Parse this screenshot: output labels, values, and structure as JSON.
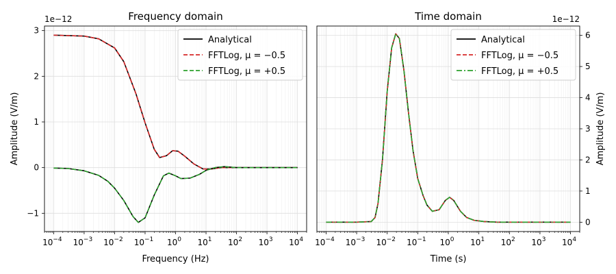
{
  "chart_data": [
    {
      "type": "line",
      "title": "Frequency domain",
      "xlabel": "Frequency (Hz)",
      "ylabel": "Amplitude (V/m)",
      "x_scale": "log",
      "xlim": [
        5e-05,
        20000
      ],
      "ylim": [
        -1.4,
        3.1
      ],
      "offset_text": "1e−12",
      "x_ticks": [
        0.0001,
        0.001,
        0.01,
        0.1,
        1,
        10,
        100,
        1000,
        10000
      ],
      "x_tick_labels": [
        {
          "base": "10",
          "exp": "−4"
        },
        {
          "base": "10",
          "exp": "−3"
        },
        {
          "base": "10",
          "exp": "−2"
        },
        {
          "base": "10",
          "exp": "−1"
        },
        {
          "base": "10",
          "exp": "0"
        },
        {
          "base": "10",
          "exp": "1"
        },
        {
          "base": "10",
          "exp": "2"
        },
        {
          "base": "10",
          "exp": "3"
        },
        {
          "base": "10",
          "exp": "4"
        }
      ],
      "y_ticks": [
        -1,
        0,
        1,
        2,
        3
      ],
      "y_tick_labels": [
        "−1",
        "0",
        "1",
        "2",
        "3"
      ],
      "legend": [
        {
          "label": "Analytical",
          "color": "#000000",
          "dash": "solid"
        },
        {
          "label": "FFTLog, μ = −0.5",
          "color": "#d62728",
          "dash": "dashed"
        },
        {
          "label": "FFTLog, μ = +0.5",
          "color": "#2ca02c",
          "dash": "dashed"
        }
      ],
      "legend_position": "top-right",
      "grid": true,
      "series": [
        {
          "name": "Analytical",
          "color": "#000000",
          "dash": "solid",
          "x": [
            0.0001,
            0.001,
            0.003,
            0.01,
            0.02,
            0.05,
            0.1,
            0.2,
            0.3,
            0.5,
            0.8,
            1.2,
            2,
            4,
            8,
            15,
            30,
            100,
            1000,
            10000
          ],
          "y": [
            2.9,
            2.88,
            2.82,
            2.62,
            2.32,
            1.62,
            0.98,
            0.4,
            0.22,
            0.26,
            0.37,
            0.36,
            0.25,
            0.08,
            -0.03,
            -0.03,
            0.0,
            0.0,
            0.0,
            0.0
          ]
        },
        {
          "name": "FFTLog, μ = −0.5",
          "color": "#d62728",
          "dash": "dashed",
          "x": [
            0.0001,
            0.001,
            0.003,
            0.01,
            0.02,
            0.05,
            0.1,
            0.2,
            0.3,
            0.5,
            0.8,
            1.2,
            2,
            4,
            8,
            15,
            30,
            100,
            1000,
            10000
          ],
          "y": [
            2.9,
            2.88,
            2.82,
            2.62,
            2.32,
            1.62,
            0.98,
            0.4,
            0.22,
            0.26,
            0.37,
            0.36,
            0.25,
            0.08,
            -0.03,
            -0.03,
            0.0,
            0.0,
            0.0,
            0.0
          ]
        },
        {
          "name": "Analytical",
          "color": "#000000",
          "dash": "solid",
          "x": [
            0.0001,
            0.0003,
            0.001,
            0.003,
            0.006,
            0.01,
            0.02,
            0.04,
            0.06,
            0.1,
            0.2,
            0.4,
            0.6,
            1.0,
            1.5,
            3,
            6,
            10,
            20,
            40,
            100,
            1000,
            10000
          ],
          "y": [
            -0.01,
            -0.02,
            -0.07,
            -0.17,
            -0.3,
            -0.45,
            -0.72,
            -1.07,
            -1.2,
            -1.1,
            -0.6,
            -0.18,
            -0.12,
            -0.18,
            -0.24,
            -0.23,
            -0.15,
            -0.06,
            0.0,
            0.02,
            0.0,
            0.0,
            0.0
          ]
        },
        {
          "name": "FFTLog, μ = +0.5",
          "color": "#2ca02c",
          "dash": "dashed",
          "x": [
            0.0001,
            0.0003,
            0.001,
            0.003,
            0.006,
            0.01,
            0.02,
            0.04,
            0.06,
            0.1,
            0.2,
            0.4,
            0.6,
            1.0,
            1.5,
            3,
            6,
            10,
            20,
            40,
            100,
            1000,
            10000
          ],
          "y": [
            -0.01,
            -0.02,
            -0.07,
            -0.17,
            -0.3,
            -0.45,
            -0.72,
            -1.07,
            -1.2,
            -1.1,
            -0.6,
            -0.18,
            -0.12,
            -0.18,
            -0.24,
            -0.23,
            -0.15,
            -0.06,
            0.0,
            0.02,
            0.0,
            0.0,
            0.0
          ]
        }
      ]
    },
    {
      "type": "line",
      "title": "Time domain",
      "xlabel": "Time (s)",
      "ylabel": "Amplitude (V/m)",
      "x_scale": "log",
      "xlim": [
        5e-05,
        20000
      ],
      "ylim": [
        -0.3,
        6.3
      ],
      "y_axis_side": "right",
      "offset_text": "1e−12",
      "x_ticks": [
        0.0001,
        0.001,
        0.01,
        0.1,
        1,
        10,
        100,
        1000,
        10000
      ],
      "x_tick_labels": [
        {
          "base": "10",
          "exp": "−4"
        },
        {
          "base": "10",
          "exp": "−3"
        },
        {
          "base": "10",
          "exp": "−2"
        },
        {
          "base": "10",
          "exp": "−1"
        },
        {
          "base": "10",
          "exp": "0"
        },
        {
          "base": "10",
          "exp": "1"
        },
        {
          "base": "10",
          "exp": "2"
        },
        {
          "base": "10",
          "exp": "3"
        },
        {
          "base": "10",
          "exp": "4"
        }
      ],
      "y_ticks": [
        0,
        1,
        2,
        3,
        4,
        5,
        6
      ],
      "y_tick_labels": [
        "0",
        "1",
        "2",
        "3",
        "4",
        "5",
        "6"
      ],
      "legend": [
        {
          "label": "Analytical",
          "color": "#000000",
          "dash": "solid"
        },
        {
          "label": "FFTLog, μ = −0.5",
          "color": "#d62728",
          "dash": "dashed"
        },
        {
          "label": "FFTLog, μ = +0.5",
          "color": "#2ca02c",
          "dash": "dashdot"
        }
      ],
      "legend_position": "top-right",
      "grid": true,
      "series": [
        {
          "name": "Analytical",
          "color": "#000000",
          "dash": "solid",
          "x": [
            0.0001,
            0.001,
            0.003,
            0.004,
            0.005,
            0.007,
            0.01,
            0.014,
            0.019,
            0.025,
            0.035,
            0.05,
            0.07,
            0.1,
            0.15,
            0.2,
            0.3,
            0.5,
            0.8,
            1.1,
            1.5,
            2.5,
            4,
            7,
            15,
            40,
            100,
            1000,
            10000
          ],
          "y": [
            0.0,
            0.0,
            0.02,
            0.15,
            0.6,
            2.0,
            4.2,
            5.6,
            6.05,
            5.9,
            4.9,
            3.5,
            2.3,
            1.4,
            0.85,
            0.55,
            0.35,
            0.4,
            0.7,
            0.8,
            0.7,
            0.35,
            0.15,
            0.06,
            0.02,
            0.0,
            0.0,
            0.0,
            0.0
          ]
        },
        {
          "name": "FFTLog, μ = −0.5",
          "color": "#d62728",
          "dash": "dashed",
          "x": [
            0.0001,
            0.001,
            0.003,
            0.004,
            0.005,
            0.007,
            0.01,
            0.014,
            0.019,
            0.025,
            0.035,
            0.05,
            0.07,
            0.1,
            0.15,
            0.2,
            0.3,
            0.5,
            0.8,
            1.1,
            1.5,
            2.5,
            4,
            7,
            15,
            40,
            100,
            1000,
            10000
          ],
          "y": [
            0.0,
            0.0,
            0.02,
            0.15,
            0.6,
            2.0,
            4.2,
            5.6,
            6.05,
            5.9,
            4.9,
            3.5,
            2.3,
            1.4,
            0.85,
            0.55,
            0.35,
            0.4,
            0.7,
            0.8,
            0.7,
            0.35,
            0.15,
            0.06,
            0.02,
            0.0,
            0.0,
            0.0,
            0.0
          ]
        },
        {
          "name": "FFTLog, μ = +0.5",
          "color": "#2ca02c",
          "dash": "dashdot",
          "x": [
            0.0001,
            0.001,
            0.003,
            0.004,
            0.005,
            0.007,
            0.01,
            0.014,
            0.019,
            0.025,
            0.035,
            0.05,
            0.07,
            0.1,
            0.15,
            0.2,
            0.3,
            0.5,
            0.8,
            1.1,
            1.5,
            2.5,
            4,
            7,
            15,
            40,
            100,
            1000,
            10000
          ],
          "y": [
            0.0,
            0.0,
            0.02,
            0.15,
            0.6,
            2.0,
            4.2,
            5.6,
            6.05,
            5.9,
            4.9,
            3.5,
            2.3,
            1.4,
            0.85,
            0.55,
            0.35,
            0.4,
            0.7,
            0.8,
            0.7,
            0.35,
            0.15,
            0.06,
            0.02,
            0.0,
            0.0,
            0.0,
            0.0
          ]
        }
      ]
    }
  ]
}
